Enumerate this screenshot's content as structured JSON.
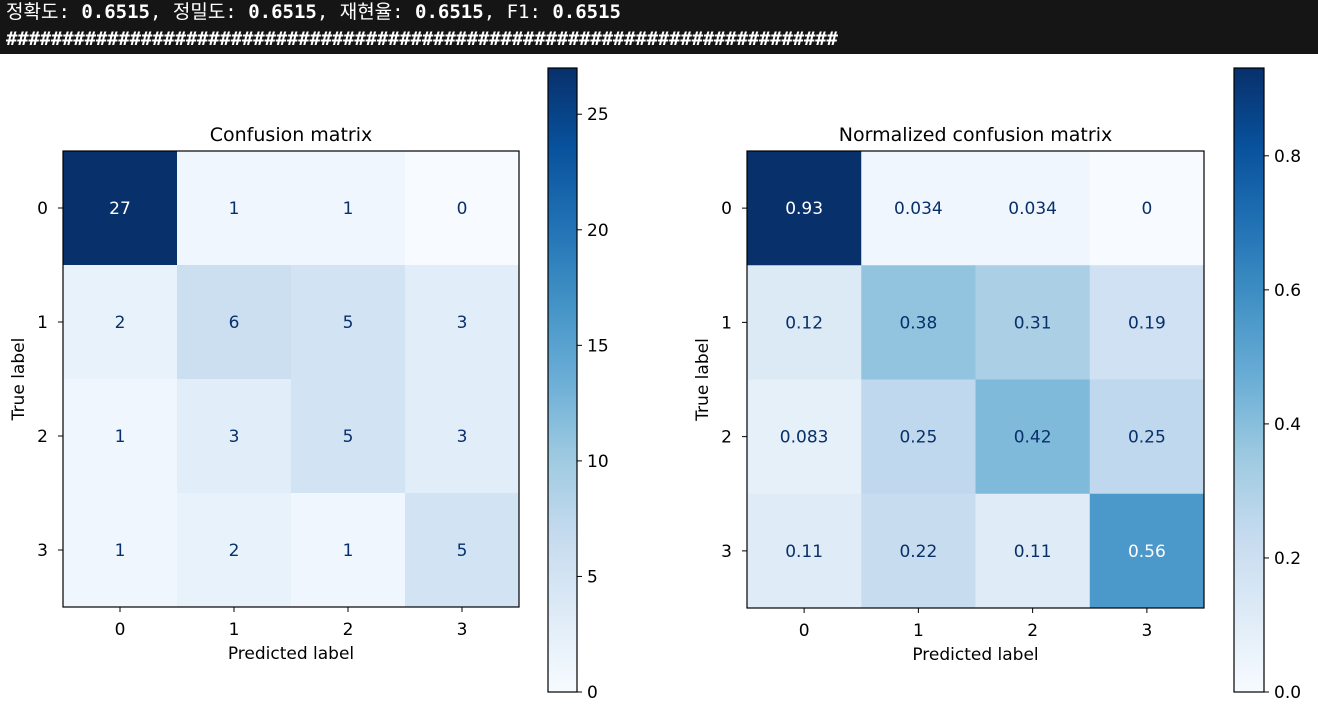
{
  "console": {
    "metrics": [
      {
        "label": "정확도: ",
        "value": "0.6515",
        "sep": ", "
      },
      {
        "label": "정밀도: ",
        "value": "0.6515",
        "sep": ", "
      },
      {
        "label": "재현율: ",
        "value": "0.6515",
        "sep": ", "
      },
      {
        "label": "F1: ",
        "value": "0.6515",
        "sep": ""
      }
    ],
    "separator": "##########################################################################"
  },
  "colors": {
    "console_bg": "#151515",
    "cmap_low": "#f7fbff",
    "cmap_high": "#08306b",
    "text_on_light": "#08306b",
    "text_on_dark": "#ffffff"
  },
  "chart_data": [
    {
      "type": "heatmap",
      "title": "Confusion matrix",
      "xlabel": "Predicted label",
      "ylabel": "True label",
      "xticks": [
        "0",
        "1",
        "2",
        "3"
      ],
      "yticks": [
        "0",
        "1",
        "2",
        "3"
      ],
      "values": [
        [
          27,
          1,
          1,
          0
        ],
        [
          2,
          6,
          5,
          3
        ],
        [
          1,
          3,
          5,
          3
        ],
        [
          1,
          2,
          1,
          5
        ]
      ],
      "labels": [
        [
          "27",
          "1",
          "1",
          "0"
        ],
        [
          "2",
          "6",
          "5",
          "3"
        ],
        [
          "1",
          "3",
          "5",
          "3"
        ],
        [
          "1",
          "2",
          "1",
          "5"
        ]
      ],
      "vmin": 0,
      "vmax": 27,
      "colorbar_ticks": [
        0,
        5,
        10,
        15,
        20,
        25
      ],
      "colorbar_tick_labels": [
        "0",
        "5",
        "10",
        "15",
        "20",
        "25"
      ],
      "colormap": "Blues"
    },
    {
      "type": "heatmap",
      "title": "Normalized confusion matrix",
      "xlabel": "Predicted label",
      "ylabel": "True label",
      "xticks": [
        "0",
        "1",
        "2",
        "3"
      ],
      "yticks": [
        "0",
        "1",
        "2",
        "3"
      ],
      "values": [
        [
          0.931,
          0.034,
          0.034,
          0
        ],
        [
          0.125,
          0.375,
          0.3125,
          0.1875
        ],
        [
          0.0833,
          0.25,
          0.4167,
          0.25
        ],
        [
          0.111,
          0.222,
          0.111,
          0.556
        ]
      ],
      "labels": [
        [
          "0.93",
          "0.034",
          "0.034",
          "0"
        ],
        [
          "0.12",
          "0.38",
          "0.31",
          "0.19"
        ],
        [
          "0.083",
          "0.25",
          "0.42",
          "0.25"
        ],
        [
          "0.11",
          "0.22",
          "0.11",
          "0.56"
        ]
      ],
      "vmin": 0,
      "vmax": 0.931,
      "colorbar_ticks": [
        0.0,
        0.2,
        0.4,
        0.6,
        0.8
      ],
      "colorbar_tick_labels": [
        "0.0",
        "0.2",
        "0.4",
        "0.6",
        "0.8"
      ],
      "colormap": "Blues"
    }
  ]
}
